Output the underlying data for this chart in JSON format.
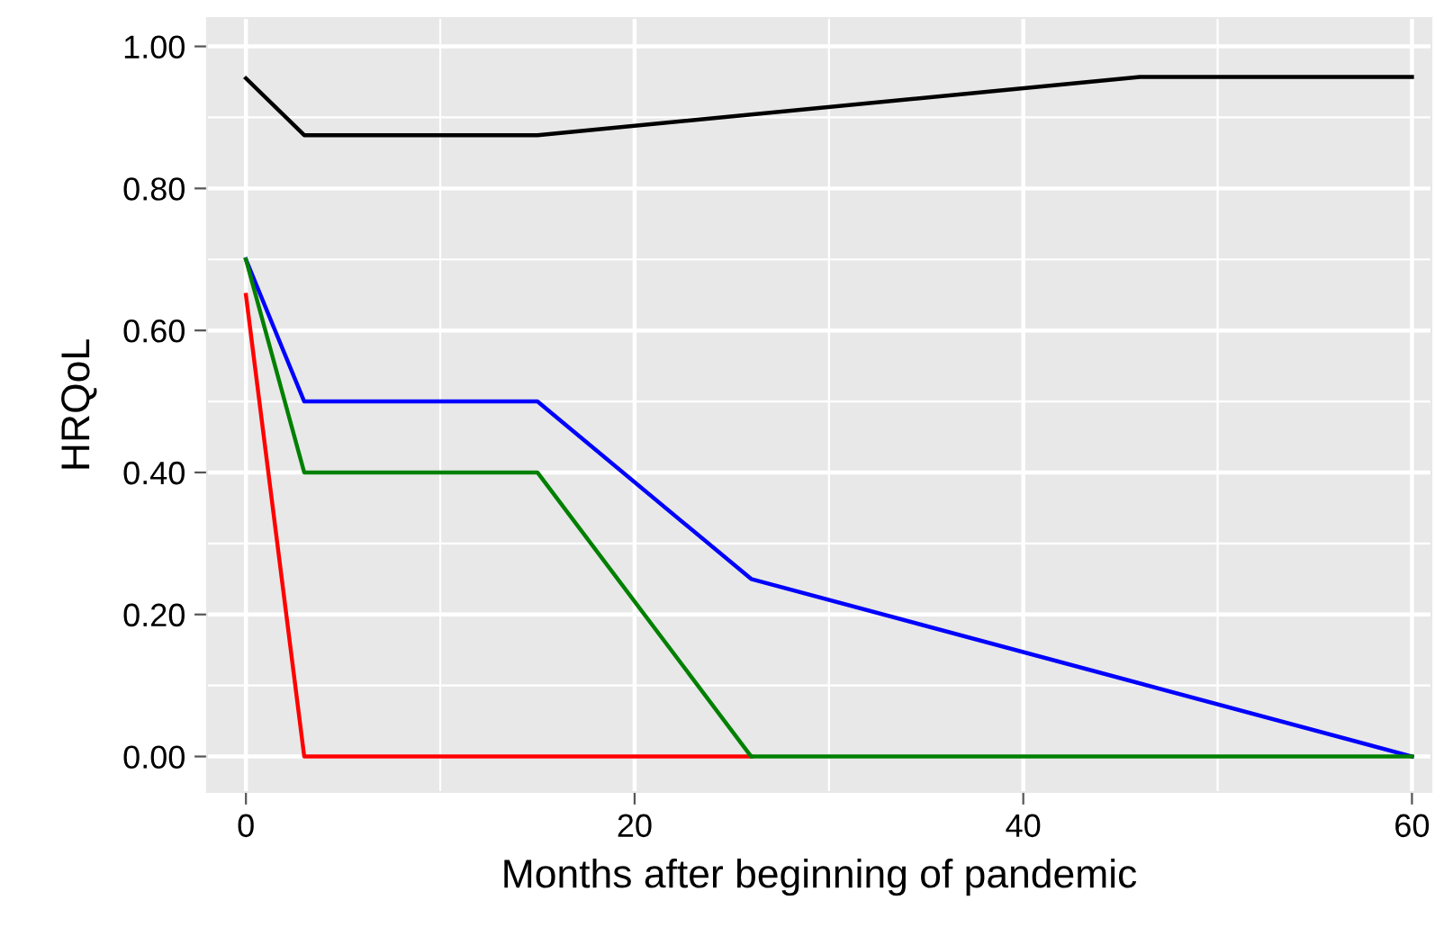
{
  "chart_data": {
    "type": "line",
    "xlabel": "Months after beginning of pandemic",
    "ylabel": "HRQoL",
    "xlim": [
      -2,
      61
    ],
    "ylim": [
      -0.05,
      1.04
    ],
    "xticks": [
      0,
      20,
      40,
      60
    ],
    "yticks": [
      {
        "value": 0,
        "label": "0.00"
      },
      {
        "value": 0.2,
        "label": "0.20"
      },
      {
        "value": 0.4,
        "label": "0.40"
      },
      {
        "value": 0.6,
        "label": "0.60"
      },
      {
        "value": 0.8,
        "label": "0.80"
      },
      {
        "value": 1.0,
        "label": "1.00"
      }
    ],
    "grid": true,
    "marker": "none",
    "line_style": "solid",
    "series": [
      {
        "color": "#000000",
        "x": [
          0,
          3,
          15,
          46,
          60
        ],
        "values": [
          0.955,
          0.875,
          0.875,
          0.957,
          0.957
        ]
      },
      {
        "color": "#0000ff",
        "x": [
          0,
          3,
          15,
          26,
          60
        ],
        "values": [
          0.7,
          0.5,
          0.5,
          0.25,
          0
        ]
      },
      {
        "color": "#ff0000",
        "x": [
          0,
          3,
          26
        ],
        "values": [
          0.65,
          0,
          0
        ]
      },
      {
        "color": "#008000",
        "x": [
          0,
          3,
          15,
          26,
          60
        ],
        "values": [
          0.7,
          0.4,
          0.4,
          0,
          0
        ]
      }
    ]
  }
}
